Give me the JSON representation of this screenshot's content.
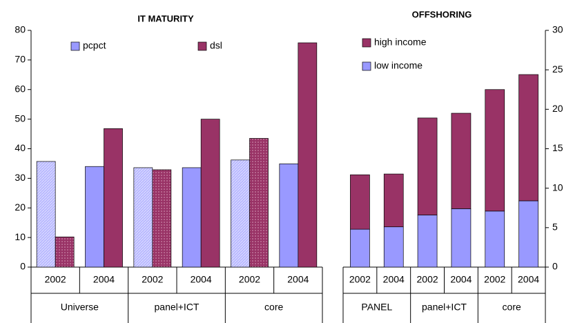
{
  "chart_data": [
    {
      "type": "bar",
      "title": "IT MATURITY",
      "categories": [
        "2002",
        "2004",
        "2002",
        "2004",
        "2002",
        "2004"
      ],
      "groups": [
        "Universe",
        "panel+ICT",
        "core"
      ],
      "series": [
        {
          "name": "pcpct",
          "color": "#9999ff",
          "values": [
            35.7,
            34,
            33.6,
            33.6,
            36.2,
            34.9
          ]
        },
        {
          "name": "dsl",
          "color": "#993366",
          "values": [
            10.2,
            46.8,
            32.9,
            50,
            43.5,
            75.8
          ]
        }
      ],
      "ylim": [
        0,
        80
      ],
      "yticks": [
        0,
        10,
        20,
        30,
        40,
        50,
        60,
        70,
        80
      ]
    },
    {
      "type": "stacked_bar",
      "title": "OFFSHORING",
      "categories": [
        "2002",
        "2004",
        "2002",
        "2004",
        "2002",
        "2004"
      ],
      "groups": [
        "PANEL",
        "panel+ICT",
        "core"
      ],
      "series": [
        {
          "name": "high income",
          "color": "#993366",
          "values": [
            6.9,
            6.7,
            12.3,
            12.1,
            15.4,
            16.0
          ]
        },
        {
          "name": "low  income",
          "color": "#9999ff",
          "values": [
            4.8,
            5.1,
            6.6,
            7.4,
            7.1,
            8.4
          ]
        }
      ],
      "ylim": [
        0,
        30
      ],
      "yticks": [
        0,
        5,
        10,
        15,
        20,
        25,
        30
      ]
    }
  ]
}
